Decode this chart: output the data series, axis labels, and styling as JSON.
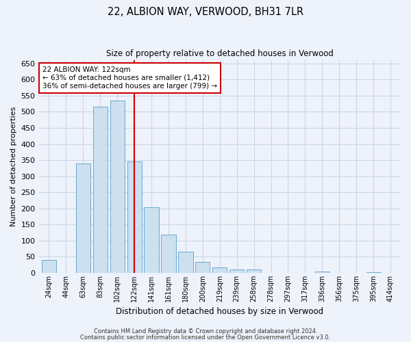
{
  "title": "22, ALBION WAY, VERWOOD, BH31 7LR",
  "subtitle": "Size of property relative to detached houses in Verwood",
  "xlabel": "Distribution of detached houses by size in Verwood",
  "ylabel": "Number of detached properties",
  "categories": [
    "24sqm",
    "44sqm",
    "63sqm",
    "83sqm",
    "102sqm",
    "122sqm",
    "141sqm",
    "161sqm",
    "180sqm",
    "200sqm",
    "219sqm",
    "239sqm",
    "258sqm",
    "278sqm",
    "297sqm",
    "317sqm",
    "336sqm",
    "356sqm",
    "375sqm",
    "395sqm",
    "414sqm"
  ],
  "values": [
    40,
    0,
    340,
    515,
    535,
    345,
    203,
    118,
    65,
    35,
    18,
    11,
    10,
    0,
    0,
    0,
    5,
    0,
    0,
    3,
    0
  ],
  "bar_color": "#cce0f0",
  "bar_edge_color": "#5a9ec9",
  "highlight_index": 5,
  "highlight_line_color": "#cc0000",
  "annotation_line1": "22 ALBION WAY: 122sqm",
  "annotation_line2": "← 63% of detached houses are smaller (1,412)",
  "annotation_line3": "36% of semi-detached houses are larger (799) →",
  "annotation_box_color": "#ffffff",
  "annotation_box_edge": "#cc0000",
  "grid_color": "#ccd5e8",
  "background_color": "#eef2fa",
  "footer_line1": "Contains HM Land Registry data © Crown copyright and database right 2024.",
  "footer_line2": "Contains public sector information licensed under the Open Government Licence v3.0.",
  "ylim": [
    0,
    660
  ],
  "yticks": [
    0,
    50,
    100,
    150,
    200,
    250,
    300,
    350,
    400,
    450,
    500,
    550,
    600,
    650
  ]
}
